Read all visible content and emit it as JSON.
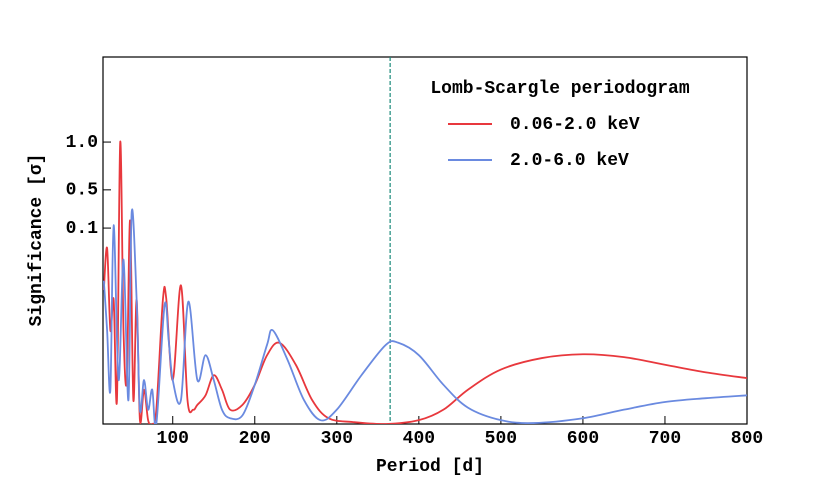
{
  "chart_data": {
    "type": "line",
    "xlabel": "Period [d]",
    "ylabel": "Significance [σ]",
    "legend_title": "Lomb-Scargle periodogram",
    "legend": "upper right",
    "xlim": [
      15,
      800
    ],
    "xticks": [
      100,
      200,
      300,
      400,
      500,
      600,
      700,
      800
    ],
    "ylim": [
      -1.95,
      1.89
    ],
    "yticks": [
      0.1,
      0.5,
      {
        "value": 1,
        "label": "1.0"
      }
    ],
    "reference_line": {
      "x": 365,
      "color": "#1a8a7a",
      "style": "dashed"
    },
    "series": [
      {
        "name": "0.06-2.0 keV",
        "color": "#e8383d",
        "x": [
          16,
          20,
          24,
          28,
          32,
          36,
          40,
          44,
          48,
          52,
          56,
          60,
          65,
          70,
          75,
          80,
          88,
          92,
          100,
          110,
          118,
          125,
          130,
          140,
          150,
          160,
          170,
          185,
          200,
          215,
          230,
          250,
          270,
          290,
          320,
          360,
          400,
          430,
          460,
          500,
          550,
          600,
          650,
          700,
          750,
          800
        ],
        "values": [
          -0.55,
          -0.11,
          -0.97,
          -0.65,
          -1.7,
          1.0,
          -0.97,
          -1.49,
          0.18,
          -1.7,
          -0.65,
          -1.91,
          -1.59,
          -1.91,
          -1.95,
          -1.8,
          -0.65,
          -0.63,
          -1.49,
          -0.5,
          -1.7,
          -1.8,
          -1.75,
          -1.65,
          -1.44,
          -1.59,
          -1.8,
          -1.75,
          -1.54,
          -1.23,
          -1.1,
          -1.33,
          -1.7,
          -1.89,
          -1.93,
          -1.95,
          -1.91,
          -1.8,
          -1.59,
          -1.38,
          -1.26,
          -1.22,
          -1.25,
          -1.33,
          -1.41,
          -1.47
        ]
      },
      {
        "name": "2.0-6.0 keV",
        "color": "#6a8ae0",
        "x": [
          16,
          20,
          24,
          28,
          34,
          40,
          46,
          50,
          56,
          60,
          65,
          70,
          75,
          80,
          90,
          95,
          100,
          110,
          119,
          130,
          140,
          150,
          160,
          170,
          185,
          200,
          215,
          222,
          240,
          260,
          280,
          300,
          330,
          360,
          375,
          400,
          430,
          460,
          500,
          540,
          600,
          650,
          700,
          750,
          800
        ],
        "values": [
          -0.45,
          -0.97,
          -1.59,
          0.13,
          -1.49,
          -0.23,
          -1.7,
          0.27,
          -0.65,
          -1.8,
          -1.49,
          -1.8,
          -1.59,
          -1.95,
          -0.71,
          -1.07,
          -1.49,
          -1.7,
          -0.67,
          -1.49,
          -1.23,
          -1.49,
          -1.8,
          -1.89,
          -1.86,
          -1.54,
          -1.12,
          -0.97,
          -1.28,
          -1.7,
          -1.91,
          -1.8,
          -1.44,
          -1.12,
          -1.1,
          -1.23,
          -1.54,
          -1.78,
          -1.91,
          -1.94,
          -1.89,
          -1.8,
          -1.72,
          -1.68,
          -1.65
        ]
      }
    ]
  }
}
